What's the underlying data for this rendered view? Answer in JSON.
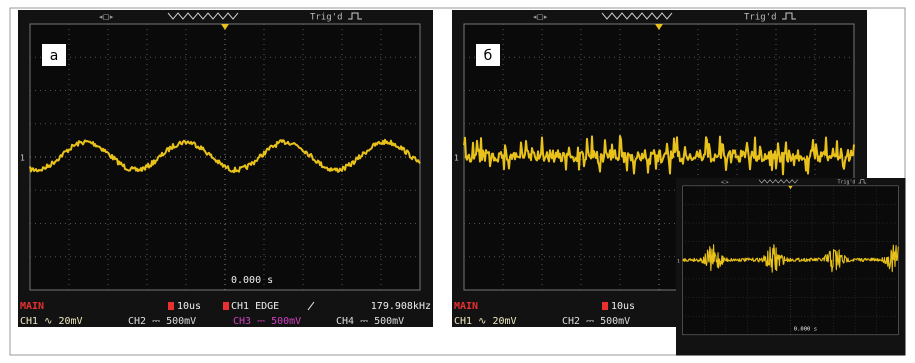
{
  "panels": [
    {
      "label": "а",
      "trigger_state": "Trig'd",
      "time_offset": "0.000 s",
      "status": {
        "mode": "MAIN",
        "timebase": "10us",
        "trigger": "CH1 EDGE",
        "frequency": "179.908kHz"
      },
      "channels": [
        "CH1 ∿ 20mV",
        "CH2 ⎓ 500mV",
        "CH3 ⎓ 500mV",
        "CH4 ⎓ 500mV"
      ]
    },
    {
      "label": "б",
      "trigger_state": "Trig'd",
      "status": {
        "mode": "MAIN",
        "timebase": "10us"
      },
      "channels": [
        "CH1 ∿ 20mV",
        "CH2 ⎓ 500mV"
      ]
    },
    {
      "trigger_state": "Trig'd",
      "time_offset": "0.000 s"
    }
  ]
}
